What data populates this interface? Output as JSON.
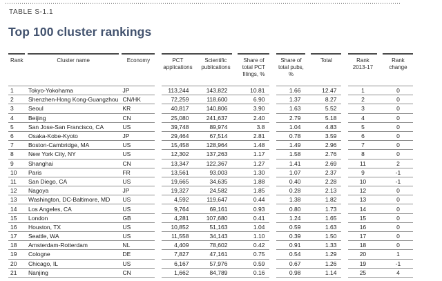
{
  "page": {
    "table_label": "TABLE S-1.1",
    "title": "Top 100 cluster rankings"
  },
  "colors": {
    "title": "#42526e",
    "header_rule": "#4a4a4a",
    "row_rule": "#8f8f8f"
  },
  "table": {
    "columns": [
      "Rank",
      "Cluster name",
      "Economy",
      "PCT applications",
      "Scientific publications",
      "Share of total PCT filings, %",
      "Share of total pubs, %",
      "Total",
      "Rank 2013-17",
      "Rank change"
    ],
    "rows": [
      [
        "1",
        "Tokyo-Yokohama",
        "JP",
        "113,244",
        "143,822",
        "10.81",
        "1.66",
        "12.47",
        "1",
        "0"
      ],
      [
        "2",
        "Shenzhen-Hong Kong-Guangzhou",
        "CN/HK",
        "72,259",
        "118,600",
        "6.90",
        "1.37",
        "8.27",
        "2",
        "0"
      ],
      [
        "3",
        "Seoul",
        "KR",
        "40,817",
        "140,806",
        "3.90",
        "1.63",
        "5.52",
        "3",
        "0"
      ],
      [
        "4",
        "Beijing",
        "CN",
        "25,080",
        "241,637",
        "2.40",
        "2.79",
        "5.18",
        "4",
        "0"
      ],
      [
        "5",
        "San Jose-San Francisco, CA",
        "US",
        "39,748",
        "89,974",
        "3.8",
        "1.04",
        "4.83",
        "5",
        "0"
      ],
      [
        "6",
        "Osaka-Kobe-Kyoto",
        "JP",
        "29,464",
        "67,514",
        "2.81",
        "0.78",
        "3.59",
        "6",
        "0"
      ],
      [
        "7",
        "Boston-Cambridge, MA",
        "US",
        "15,458",
        "128,964",
        "1.48",
        "1.49",
        "2.96",
        "7",
        "0"
      ],
      [
        "8",
        "New York City, NY",
        "US",
        "12,302",
        "137,263",
        "1.17",
        "1.58",
        "2.76",
        "8",
        "0"
      ],
      [
        "9",
        "Shanghai",
        "CN",
        "13,347",
        "122,367",
        "1.27",
        "1.41",
        "2.69",
        "11",
        "2"
      ],
      [
        "10",
        "Paris",
        "FR",
        "13,561",
        "93,003",
        "1.30",
        "1.07",
        "2.37",
        "9",
        "-1"
      ],
      [
        "11",
        "San Diego, CA",
        "US",
        "19,665",
        "34,635",
        "1.88",
        "0.40",
        "2.28",
        "10",
        "-1"
      ],
      [
        "12",
        "Nagoya",
        "JP",
        "19,327",
        "24,582",
        "1.85",
        "0.28",
        "2.13",
        "12",
        "0"
      ],
      [
        "13",
        "Washington, DC-Baltimore, MD",
        "US",
        "4,592",
        "119,647",
        "0.44",
        "1.38",
        "1.82",
        "13",
        "0"
      ],
      [
        "14",
        "Los Angeles, CA",
        "US",
        "9,764",
        "69,161",
        "0.93",
        "0.80",
        "1.73",
        "14",
        "0"
      ],
      [
        "15",
        "London",
        "GB",
        "4,281",
        "107,680",
        "0.41",
        "1.24",
        "1.65",
        "15",
        "0"
      ],
      [
        "16",
        "Houston, TX",
        "US",
        "10,852",
        "51,163",
        "1.04",
        "0.59",
        "1.63",
        "16",
        "0"
      ],
      [
        "17",
        "Seattle, WA",
        "US",
        "11,558",
        "34,143",
        "1.10",
        "0.39",
        "1.50",
        "17",
        "0"
      ],
      [
        "18",
        "Amsterdam-Rotterdam",
        "NL",
        "4,409",
        "78,602",
        "0.42",
        "0.91",
        "1.33",
        "18",
        "0"
      ],
      [
        "19",
        "Cologne",
        "DE",
        "7,827",
        "47,161",
        "0.75",
        "0.54",
        "1.29",
        "20",
        "1"
      ],
      [
        "20",
        "Chicago, IL",
        "US",
        "6,167",
        "57,976",
        "0.59",
        "0.67",
        "1.26",
        "19",
        "-1"
      ],
      [
        "21",
        "Nanjing",
        "CN",
        "1,662",
        "84,789",
        "0.16",
        "0.98",
        "1.14",
        "25",
        "4"
      ]
    ]
  }
}
